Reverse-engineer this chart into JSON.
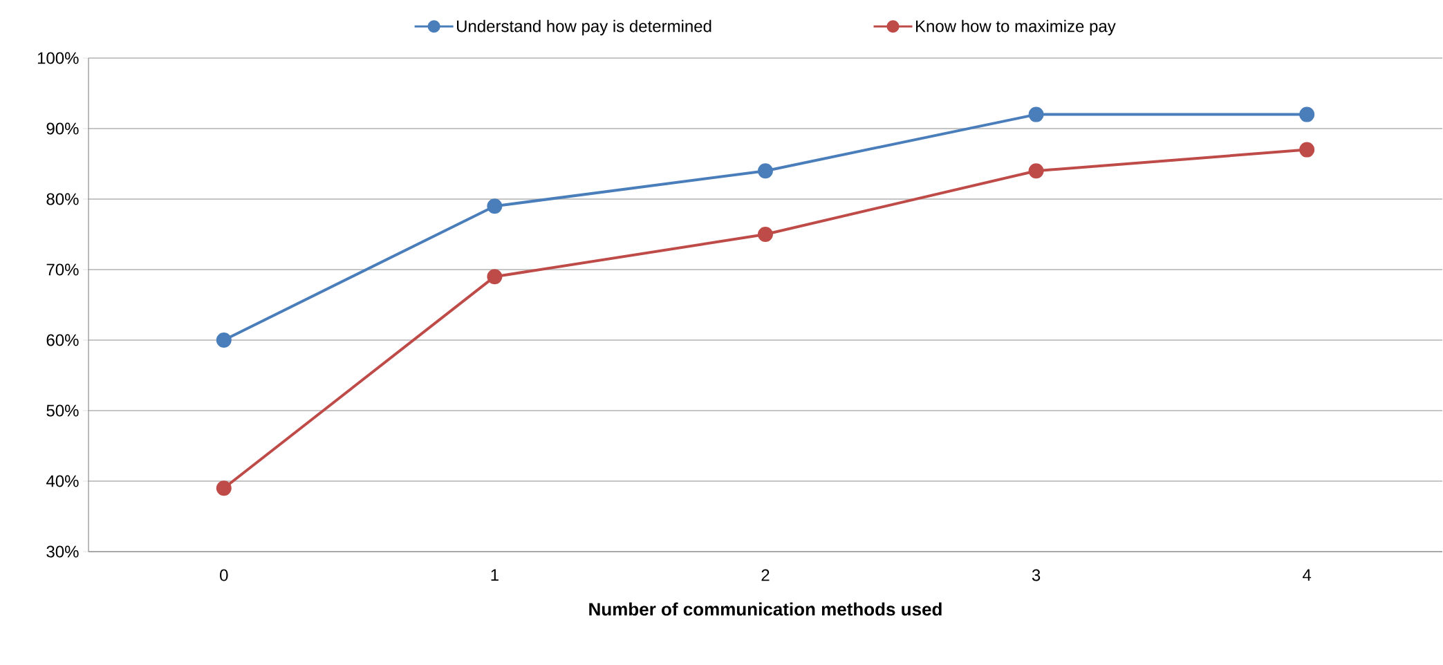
{
  "chart_data": {
    "type": "line",
    "xlabel": "Number of communication methods used",
    "categories": [
      "0",
      "1",
      "2",
      "3",
      "4"
    ],
    "series": [
      {
        "name": "Understand how pay is determined",
        "color": "#4a7ebb",
        "values": [
          60,
          79,
          84,
          92,
          92
        ]
      },
      {
        "name": "Know how to maximize pay",
        "color": "#be4b48",
        "values": [
          39,
          69,
          75,
          84,
          87
        ]
      }
    ],
    "ylim": [
      30,
      100
    ],
    "yticks": [
      {
        "value": 30,
        "label": "30%"
      },
      {
        "value": 40,
        "label": "40%"
      },
      {
        "value": 50,
        "label": "50%"
      },
      {
        "value": 60,
        "label": "60%"
      },
      {
        "value": 70,
        "label": "70%"
      },
      {
        "value": 80,
        "label": "80%"
      },
      {
        "value": 90,
        "label": "90%"
      },
      {
        "value": 100,
        "label": "100%"
      }
    ],
    "grid": "y",
    "legend": "top",
    "marker": "circle",
    "line_style": "solid"
  }
}
